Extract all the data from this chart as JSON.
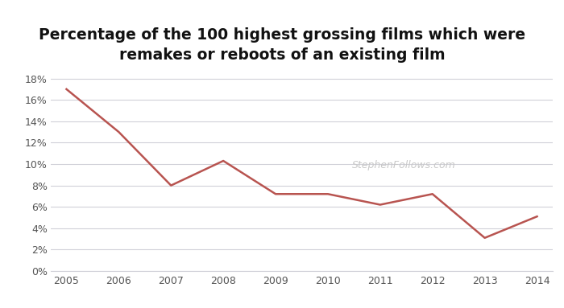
{
  "title": "Percentage of the 100 highest grossing films which were\nremakes or reboots of an existing film",
  "years": [
    2005,
    2006,
    2007,
    2008,
    2009,
    2010,
    2011,
    2012,
    2013,
    2014
  ],
  "values": [
    0.17,
    0.13,
    0.08,
    0.103,
    0.072,
    0.072,
    0.062,
    0.072,
    0.031,
    0.051
  ],
  "line_color": "#b85450",
  "line_width": 1.8,
  "background_color": "#ffffff",
  "grid_color": "#d0d0d8",
  "watermark": "StephenFollows.com",
  "watermark_color": "#c8c8c8",
  "title_fontsize": 13.5,
  "tick_fontsize": 9,
  "ylim": [
    0,
    0.19
  ],
  "yticks": [
    0,
    0.02,
    0.04,
    0.06,
    0.08,
    0.1,
    0.12,
    0.14,
    0.16,
    0.18
  ]
}
